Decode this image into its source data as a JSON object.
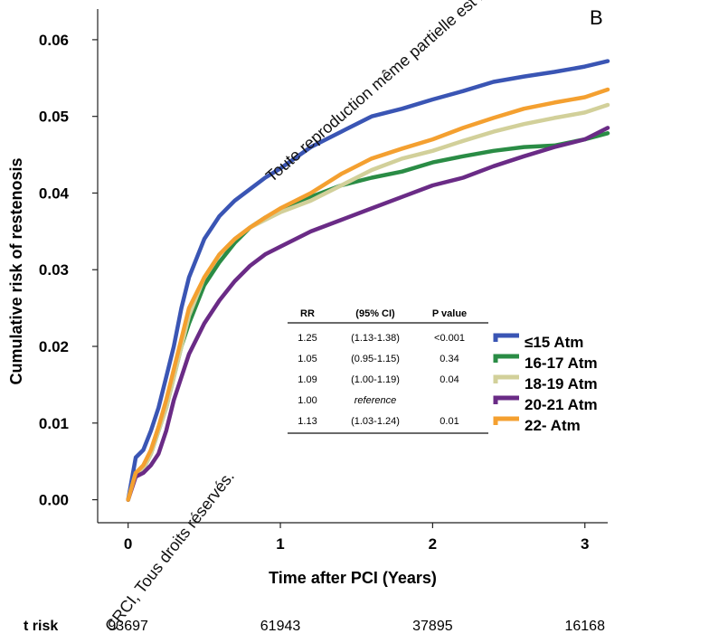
{
  "panel_label": "B",
  "watermark": {
    "line1": "Toute reproduction même partielle est interdite.",
    "line2": "CRCI, Tous droits réservés."
  },
  "chart_data": {
    "type": "line",
    "xlabel": "Time after PCI (Years)",
    "ylabel": "Cumulative risk of restenosis",
    "xlim": [
      -0.2,
      3.15
    ],
    "ylim": [
      -0.003,
      0.064
    ],
    "x_ticks": [
      0,
      1,
      2,
      3
    ],
    "y_ticks": [
      0.0,
      0.01,
      0.02,
      0.03,
      0.04,
      0.05,
      0.06
    ],
    "y_tick_labels": [
      "0.00",
      "0.01",
      "0.02",
      "0.03",
      "0.04",
      "0.05",
      "0.06"
    ],
    "grid": false,
    "legend_position": "right-middle",
    "series": [
      {
        "name": "≤15 Atm",
        "color": "#3a55b4",
        "x": [
          0,
          0.05,
          0.1,
          0.15,
          0.2,
          0.25,
          0.3,
          0.35,
          0.4,
          0.5,
          0.6,
          0.7,
          0.8,
          0.9,
          1.0,
          1.2,
          1.4,
          1.6,
          1.8,
          2.0,
          2.2,
          2.4,
          2.6,
          2.8,
          3.0,
          3.15
        ],
        "y": [
          0.0,
          0.0055,
          0.0065,
          0.009,
          0.012,
          0.016,
          0.02,
          0.025,
          0.029,
          0.034,
          0.037,
          0.039,
          0.0405,
          0.042,
          0.0432,
          0.046,
          0.048,
          0.05,
          0.051,
          0.0522,
          0.0533,
          0.0545,
          0.0552,
          0.0558,
          0.0565,
          0.0572
        ]
      },
      {
        "name": "16-17 Atm",
        "color": "#2a8c45",
        "x": [
          0,
          0.05,
          0.1,
          0.15,
          0.2,
          0.25,
          0.3,
          0.35,
          0.4,
          0.5,
          0.6,
          0.7,
          0.8,
          0.9,
          1.0,
          1.2,
          1.4,
          1.6,
          1.8,
          2.0,
          2.2,
          2.4,
          2.6,
          2.8,
          3.0,
          3.15
        ],
        "y": [
          0.0,
          0.0035,
          0.004,
          0.006,
          0.009,
          0.012,
          0.016,
          0.02,
          0.023,
          0.028,
          0.031,
          0.0335,
          0.0355,
          0.0368,
          0.0378,
          0.0395,
          0.041,
          0.042,
          0.0428,
          0.044,
          0.0448,
          0.0455,
          0.046,
          0.0462,
          0.047,
          0.0478
        ]
      },
      {
        "name": "18-19 Atm",
        "color": "#d2d09a",
        "x": [
          0,
          0.05,
          0.1,
          0.15,
          0.2,
          0.25,
          0.3,
          0.35,
          0.4,
          0.5,
          0.6,
          0.7,
          0.8,
          0.9,
          1.0,
          1.2,
          1.4,
          1.6,
          1.8,
          2.0,
          2.2,
          2.4,
          2.6,
          2.8,
          3.0,
          3.15
        ],
        "y": [
          0.0,
          0.0035,
          0.004,
          0.006,
          0.009,
          0.012,
          0.016,
          0.02,
          0.024,
          0.029,
          0.032,
          0.034,
          0.0355,
          0.0365,
          0.0375,
          0.039,
          0.041,
          0.043,
          0.0445,
          0.0455,
          0.0468,
          0.048,
          0.049,
          0.0498,
          0.0505,
          0.0515
        ]
      },
      {
        "name": "20-21 Atm",
        "color": "#6a2b86",
        "x": [
          0,
          0.05,
          0.1,
          0.15,
          0.2,
          0.25,
          0.3,
          0.35,
          0.4,
          0.5,
          0.6,
          0.7,
          0.8,
          0.9,
          1.0,
          1.2,
          1.4,
          1.6,
          1.8,
          2.0,
          2.2,
          2.4,
          2.6,
          2.8,
          3.0,
          3.15
        ],
        "y": [
          0.0,
          0.003,
          0.0035,
          0.0045,
          0.006,
          0.009,
          0.013,
          0.016,
          0.019,
          0.023,
          0.026,
          0.0285,
          0.0305,
          0.032,
          0.033,
          0.035,
          0.0365,
          0.038,
          0.0395,
          0.041,
          0.042,
          0.0435,
          0.0448,
          0.046,
          0.047,
          0.0485
        ]
      },
      {
        "name": "22- Atm",
        "color": "#f4a030",
        "x": [
          0,
          0.05,
          0.1,
          0.15,
          0.2,
          0.25,
          0.3,
          0.35,
          0.4,
          0.5,
          0.6,
          0.7,
          0.8,
          0.9,
          1.0,
          1.2,
          1.4,
          1.6,
          1.8,
          2.0,
          2.2,
          2.4,
          2.6,
          2.8,
          3.0,
          3.15
        ],
        "y": [
          0.0,
          0.0035,
          0.0045,
          0.0065,
          0.0095,
          0.013,
          0.017,
          0.021,
          0.025,
          0.029,
          0.032,
          0.034,
          0.0355,
          0.0368,
          0.038,
          0.04,
          0.0425,
          0.0445,
          0.0458,
          0.047,
          0.0485,
          0.0498,
          0.051,
          0.0518,
          0.0525,
          0.0535
        ]
      }
    ],
    "table": {
      "headers": [
        "RR",
        "(95% CI)",
        "P value"
      ],
      "rows": [
        [
          "1.25",
          "(1.13-1.38)",
          "<0.001"
        ],
        [
          "1.05",
          "(0.95-1.15)",
          "0.34"
        ],
        [
          "1.09",
          "(1.00-1.19)",
          "0.04"
        ],
        [
          "1.00",
          "reference",
          ""
        ],
        [
          "1.13",
          "(1.03-1.24)",
          "0.01"
        ]
      ]
    },
    "at_risk": {
      "label": "t risk",
      "values": [
        "93697",
        "61943",
        "37895",
        "16168"
      ]
    }
  }
}
